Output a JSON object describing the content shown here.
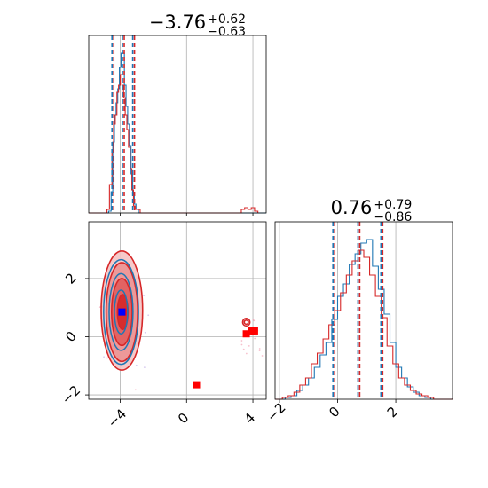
{
  "chart_data": [
    {
      "type": "histogram",
      "panel": "top-left",
      "title": {
        "main": "−3.76",
        "sup": "+0.62",
        "sub": "−0.63"
      },
      "xlim": [
        -5.9,
        4.8
      ],
      "xticks": [
        -4,
        0,
        4
      ],
      "grid": true,
      "quantiles": [
        -4.39,
        -3.76,
        -3.14
      ],
      "series": [
        {
          "color": "#1f77b4",
          "bins": [
            [
              -5.9,
              0
            ],
            [
              -4.7,
              0.01
            ],
            [
              -4.55,
              0.12
            ],
            [
              -4.45,
              0.4
            ],
            [
              -4.35,
              0.55
            ],
            [
              -4.25,
              0.62
            ],
            [
              -4.15,
              0.7
            ],
            [
              -4.05,
              0.82
            ],
            [
              -3.95,
              0.9
            ],
            [
              -3.85,
              0.9
            ],
            [
              -3.75,
              0.72
            ],
            [
              -3.65,
              0.6
            ],
            [
              -3.55,
              0.5
            ],
            [
              -3.45,
              0.38
            ],
            [
              -3.35,
              0.22
            ],
            [
              -3.25,
              0.1
            ],
            [
              -3.15,
              0.05
            ],
            [
              -3.05,
              0.02
            ],
            [
              -2.9,
              0
            ],
            [
              4.8,
              0
            ]
          ]
        },
        {
          "color": "#d62728",
          "bins": [
            [
              -5.9,
              0
            ],
            [
              -4.8,
              0.02
            ],
            [
              -4.65,
              0.16
            ],
            [
              -4.5,
              0.35
            ],
            [
              -4.4,
              0.5
            ],
            [
              -4.3,
              0.55
            ],
            [
              -4.2,
              0.68
            ],
            [
              -4.1,
              0.72
            ],
            [
              -4.0,
              0.78
            ],
            [
              -3.9,
              0.72
            ],
            [
              -3.8,
              0.65
            ],
            [
              -3.7,
              0.55
            ],
            [
              -3.6,
              0.47
            ],
            [
              -3.5,
              0.37
            ],
            [
              -3.4,
              0.25
            ],
            [
              -3.3,
              0.13
            ],
            [
              -3.2,
              0.04
            ],
            [
              -3.1,
              0.02
            ],
            [
              -2.8,
              0
            ],
            [
              3.3,
              0.02
            ],
            [
              3.5,
              0.03
            ],
            [
              3.7,
              0.02
            ],
            [
              3.9,
              0.03
            ],
            [
              4.1,
              0.01
            ],
            [
              4.3,
              0
            ]
          ]
        }
      ]
    },
    {
      "type": "scatter",
      "panel": "bottom-left",
      "xlim": [
        -5.9,
        4.8
      ],
      "ylim": [
        -2.15,
        3.95
      ],
      "xticks": [
        -4,
        0,
        4
      ],
      "yticks": [
        -2,
        0,
        2
      ],
      "grid": true,
      "blue_center": [
        -3.9,
        0.85
      ],
      "red_markers": [
        [
          -3.85,
          0.85
        ],
        [
          0.6,
          -1.65
        ],
        [
          3.6,
          0.1
        ],
        [
          3.9,
          0.2
        ],
        [
          4.1,
          0.2
        ]
      ],
      "red_contours": [
        {
          "cx": -3.9,
          "cy": 0.9,
          "rx": 1.25,
          "ry": 2.05
        },
        {
          "cx": -3.9,
          "cy": 0.85,
          "rx": 0.95,
          "ry": 1.7
        },
        {
          "cx": -3.9,
          "cy": 0.85,
          "rx": 0.62,
          "ry": 1.15
        },
        {
          "cx": -3.85,
          "cy": 0.85,
          "rx": 0.32,
          "ry": 0.6
        },
        {
          "cx": 3.6,
          "cy": 0.5,
          "rx": 0.22,
          "ry": 0.13
        },
        {
          "cx": 3.6,
          "cy": 0.5,
          "rx": 0.12,
          "ry": 0.07
        }
      ],
      "blue_contours": [
        {
          "cx": -3.95,
          "cy": 0.85,
          "rx": 1.05,
          "ry": 1.8
        },
        {
          "cx": -3.95,
          "cy": 0.85,
          "rx": 0.72,
          "ry": 1.32
        },
        {
          "cx": -3.95,
          "cy": 0.85,
          "rx": 0.4,
          "ry": 0.75
        }
      ]
    },
    {
      "type": "histogram",
      "panel": "bottom-right",
      "title": {
        "main": "0.76",
        "sup": "+0.79",
        "sub": "−0.86"
      },
      "xlim": [
        -2.15,
        3.95
      ],
      "xticks": [
        -2,
        0,
        2
      ],
      "grid": true,
      "quantiles": [
        -0.1,
        0.76,
        1.55
      ],
      "series": [
        {
          "color": "#1f77b4",
          "bins": [
            [
              -2.15,
              0
            ],
            [
              -1.8,
              0.01
            ],
            [
              -1.6,
              0.02
            ],
            [
              -1.4,
              0.05
            ],
            [
              -1.2,
              0.08
            ],
            [
              -1.0,
              0.12
            ],
            [
              -0.8,
              0.18
            ],
            [
              -0.6,
              0.25
            ],
            [
              -0.4,
              0.32
            ],
            [
              -0.2,
              0.45
            ],
            [
              0.0,
              0.58
            ],
            [
              0.2,
              0.65
            ],
            [
              0.4,
              0.76
            ],
            [
              0.6,
              0.82
            ],
            [
              0.8,
              0.88
            ],
            [
              1.0,
              0.9
            ],
            [
              1.2,
              0.75
            ],
            [
              1.4,
              0.62
            ],
            [
              1.6,
              0.48
            ],
            [
              1.8,
              0.32
            ],
            [
              2.0,
              0.18
            ],
            [
              2.2,
              0.12
            ],
            [
              2.4,
              0.07
            ],
            [
              2.6,
              0.04
            ],
            [
              2.8,
              0.02
            ],
            [
              3.0,
              0.01
            ],
            [
              3.2,
              0
            ],
            [
              3.95,
              0
            ]
          ]
        },
        {
          "color": "#d62728",
          "bins": [
            [
              -2.15,
              0
            ],
            [
              -1.9,
              0.01
            ],
            [
              -1.7,
              0.02
            ],
            [
              -1.5,
              0.04
            ],
            [
              -1.3,
              0.08
            ],
            [
              -1.1,
              0.12
            ],
            [
              -0.9,
              0.2
            ],
            [
              -0.7,
              0.26
            ],
            [
              -0.5,
              0.34
            ],
            [
              -0.3,
              0.42
            ],
            [
              -0.1,
              0.5
            ],
            [
              0.1,
              0.6
            ],
            [
              0.3,
              0.7
            ],
            [
              0.5,
              0.78
            ],
            [
              0.7,
              0.84
            ],
            [
              0.9,
              0.8
            ],
            [
              1.1,
              0.7
            ],
            [
              1.3,
              0.58
            ],
            [
              1.5,
              0.46
            ],
            [
              1.7,
              0.3
            ],
            [
              1.9,
              0.2
            ],
            [
              2.1,
              0.12
            ],
            [
              2.3,
              0.08
            ],
            [
              2.5,
              0.05
            ],
            [
              2.7,
              0.03
            ],
            [
              2.9,
              0.02
            ],
            [
              3.1,
              0.01
            ],
            [
              3.3,
              0
            ],
            [
              3.95,
              0
            ]
          ]
        }
      ]
    }
  ]
}
